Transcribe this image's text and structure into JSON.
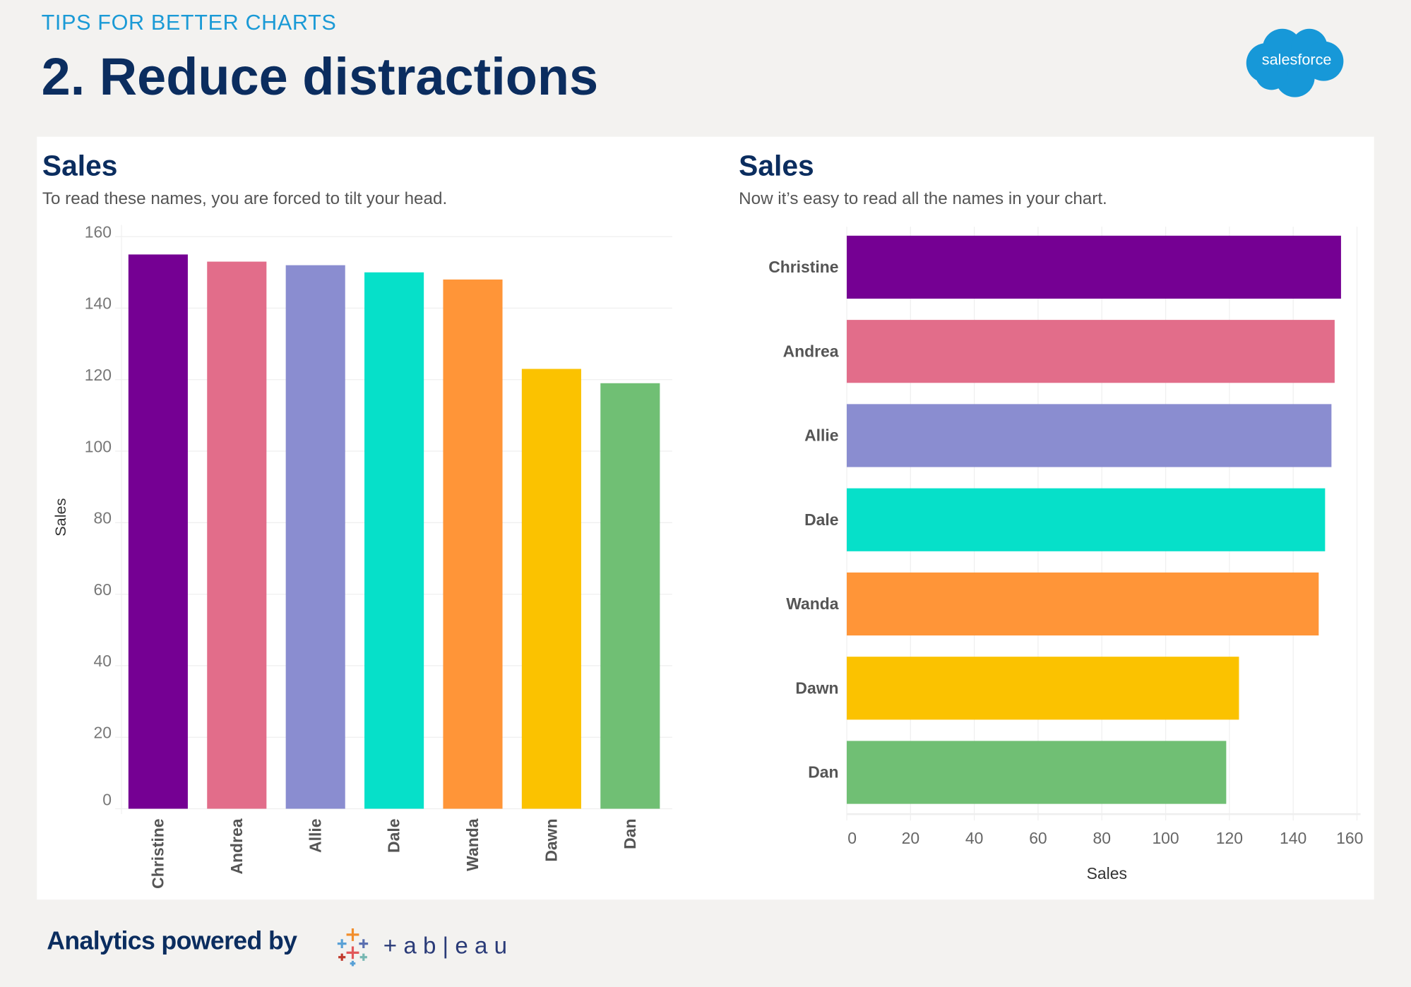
{
  "header": {
    "kicker": "TIPS FOR BETTER CHARTS",
    "title": "2. Reduce distractions"
  },
  "logo": {
    "text": "salesforce",
    "color": "#1798d8"
  },
  "footer": {
    "text": "Analytics powered by",
    "tableau_text": "+ a b | e a u"
  },
  "chart_data": [
    {
      "type": "bar",
      "orientation": "vertical",
      "title": "Sales",
      "subtitle": "To read these names, you are forced to tilt your head.",
      "ylabel": "Sales",
      "xlabel": "",
      "categories": [
        "Christine",
        "Andrea",
        "Allie",
        "Dale",
        "Wanda",
        "Dawn",
        "Dan"
      ],
      "values": [
        155,
        153,
        152,
        150,
        148,
        123,
        119
      ],
      "colors": [
        "#750093",
        "#e26d8a",
        "#8a8dd0",
        "#06e0c9",
        "#ff9538",
        "#fbc200",
        "#70bf74"
      ],
      "ylim": [
        0,
        160
      ],
      "yticks": [
        0,
        20,
        40,
        60,
        80,
        100,
        120,
        140,
        160
      ],
      "grid": true,
      "tick_label_rotation": -90
    },
    {
      "type": "bar",
      "orientation": "horizontal",
      "title": "Sales",
      "subtitle": "Now it’s easy to read all the names in your chart.",
      "xlabel": "Sales",
      "ylabel": "",
      "categories": [
        "Christine",
        "Andrea",
        "Allie",
        "Dale",
        "Wanda",
        "Dawn",
        "Dan"
      ],
      "values": [
        155,
        153,
        152,
        150,
        148,
        123,
        119
      ],
      "colors": [
        "#750093",
        "#e26d8a",
        "#8a8dd0",
        "#06e0c9",
        "#ff9538",
        "#fbc200",
        "#70bf74"
      ],
      "xlim": [
        0,
        160
      ],
      "xticks": [
        0,
        20,
        40,
        60,
        80,
        100,
        120,
        140,
        160
      ],
      "grid": true
    }
  ]
}
